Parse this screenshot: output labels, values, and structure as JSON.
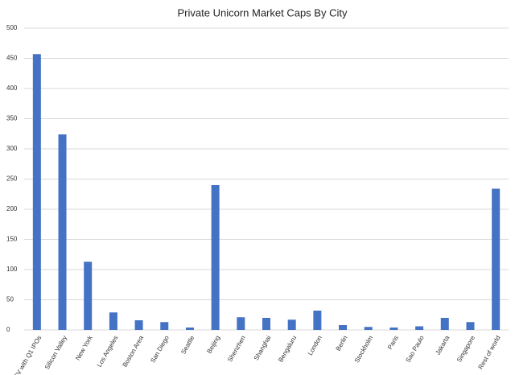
{
  "chart_data": {
    "type": "bar",
    "title": "Private Unicorn Market Caps By City",
    "categories": [
      "SV with Q1 IPOs",
      "Silicon Valley",
      "New York",
      "Los Angeles",
      "Boston Area",
      "San Diego",
      "Seattle",
      "Beijing",
      "Shenzhen",
      "Shanghai",
      "Bengaluru",
      "London",
      "Berlin",
      "Stockholm",
      "Paris",
      "Sao Paulo",
      "Jakarta",
      "Singapore",
      "Rest of world"
    ],
    "values": [
      457,
      324,
      113,
      29,
      16,
      13,
      4,
      240,
      21,
      20,
      17,
      32,
      8,
      5,
      4,
      6,
      20,
      13,
      234
    ],
    "color": "#4472c4",
    "ylim": [
      0,
      500
    ],
    "yticks": [
      0,
      50,
      100,
      150,
      200,
      250,
      300,
      350,
      400,
      450,
      500
    ],
    "grid": true
  }
}
